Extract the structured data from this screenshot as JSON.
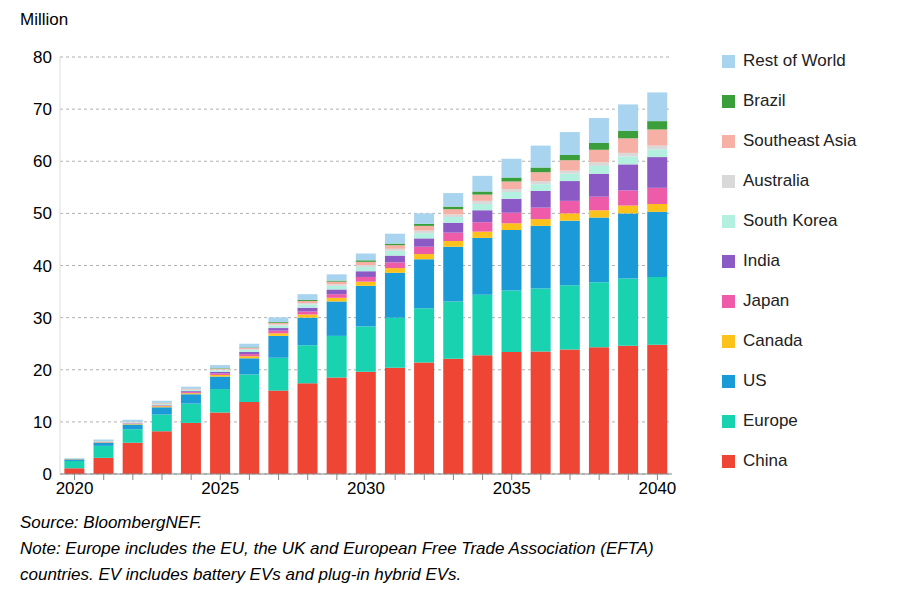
{
  "chart_data": {
    "type": "bar",
    "stacked": true,
    "grid": true,
    "legend": "right",
    "y_label": "Million",
    "annotations": [
      "Source: BloombergNEF.",
      "Note: Europe includes the EU, the UK and European Free Trade Association (EFTA)",
      "countries. EV includes battery EVs and plug-in hybrid EVs."
    ],
    "categories": [
      "2020",
      null,
      null,
      null,
      null,
      "2025",
      null,
      null,
      null,
      null,
      "2030",
      null,
      null,
      null,
      null,
      "2035",
      null,
      null,
      null,
      null,
      "2040"
    ],
    "ylim": [
      0,
      80
    ],
    "yticks": [
      0,
      10,
      20,
      30,
      40,
      50,
      60,
      70,
      80
    ],
    "series": [
      {
        "name": "China",
        "color": "#ee4535",
        "values": [
          1.1,
          3.1,
          6.0,
          8.2,
          9.8,
          11.8,
          13.8,
          16.0,
          17.4,
          18.5,
          19.6,
          20.4,
          21.4,
          22.1,
          22.8,
          23.4,
          23.5,
          23.9,
          24.3,
          24.6,
          24.8
        ]
      },
      {
        "name": "Europe",
        "color": "#19d3b0",
        "values": [
          1.4,
          2.3,
          2.6,
          3.2,
          3.7,
          4.5,
          5.3,
          6.3,
          7.3,
          8.0,
          8.7,
          9.6,
          10.4,
          11.0,
          11.6,
          11.8,
          12.1,
          12.3,
          12.5,
          12.9,
          13.0
        ]
      },
      {
        "name": "US",
        "color": "#1a9bd7",
        "values": [
          0.3,
          0.6,
          0.9,
          1.4,
          1.8,
          2.4,
          3.1,
          4.2,
          5.3,
          6.6,
          7.8,
          8.6,
          9.4,
          10.5,
          10.9,
          11.6,
          12.0,
          12.4,
          12.4,
          12.5,
          12.5
        ]
      },
      {
        "name": "Canada",
        "color": "#fcc21b",
        "values": [
          0.05,
          0.08,
          0.1,
          0.2,
          0.2,
          0.3,
          0.4,
          0.5,
          0.6,
          0.7,
          0.8,
          0.9,
          1.0,
          1.1,
          1.2,
          1.3,
          1.3,
          1.4,
          1.4,
          1.5,
          1.5
        ]
      },
      {
        "name": "Japan",
        "color": "#ee5ba8",
        "values": [
          0.03,
          0.05,
          0.1,
          0.1,
          0.2,
          0.3,
          0.4,
          0.5,
          0.6,
          0.7,
          0.9,
          1.1,
          1.4,
          1.6,
          1.8,
          2.0,
          2.2,
          2.4,
          2.6,
          2.9,
          3.1
        ]
      },
      {
        "name": "India",
        "color": "#8c5ac4",
        "values": [
          0.0,
          0.02,
          0.05,
          0.1,
          0.2,
          0.3,
          0.4,
          0.5,
          0.7,
          0.9,
          1.1,
          1.3,
          1.6,
          1.9,
          2.3,
          2.7,
          3.2,
          3.8,
          4.4,
          5.0,
          5.9
        ]
      },
      {
        "name": "South Korea",
        "color": "#b4f0df",
        "values": [
          0.05,
          0.1,
          0.15,
          0.2,
          0.2,
          0.3,
          0.4,
          0.5,
          0.6,
          0.7,
          0.8,
          0.9,
          1.0,
          1.1,
          1.2,
          1.3,
          1.3,
          1.4,
          1.5,
          1.5,
          1.5
        ]
      },
      {
        "name": "Australia",
        "color": "#d9d9d9",
        "values": [
          0.01,
          0.02,
          0.05,
          0.1,
          0.1,
          0.15,
          0.2,
          0.2,
          0.3,
          0.3,
          0.4,
          0.4,
          0.5,
          0.5,
          0.6,
          0.6,
          0.6,
          0.6,
          0.7,
          0.7,
          0.7
        ]
      },
      {
        "name": "Southeast Asia",
        "color": "#f7b0a6",
        "values": [
          0.01,
          0.02,
          0.05,
          0.1,
          0.1,
          0.15,
          0.2,
          0.3,
          0.4,
          0.5,
          0.6,
          0.7,
          0.9,
          1.0,
          1.2,
          1.4,
          1.7,
          2.0,
          2.4,
          2.8,
          3.1
        ]
      },
      {
        "name": "Brazil",
        "color": "#3a9e3a",
        "values": [
          0.01,
          0.02,
          0.03,
          0.05,
          0.05,
          0.1,
          0.1,
          0.15,
          0.2,
          0.2,
          0.3,
          0.3,
          0.4,
          0.5,
          0.6,
          0.8,
          0.9,
          1.0,
          1.3,
          1.4,
          1.6
        ]
      },
      {
        "name": "Rest of World",
        "color": "#a8d4f0",
        "values": [
          0.1,
          0.3,
          0.4,
          0.4,
          0.4,
          0.6,
          0.7,
          0.9,
          1.1,
          1.2,
          1.3,
          1.9,
          2.0,
          2.6,
          3.0,
          3.6,
          4.2,
          4.4,
          4.8,
          5.1,
          5.5
        ]
      }
    ]
  }
}
